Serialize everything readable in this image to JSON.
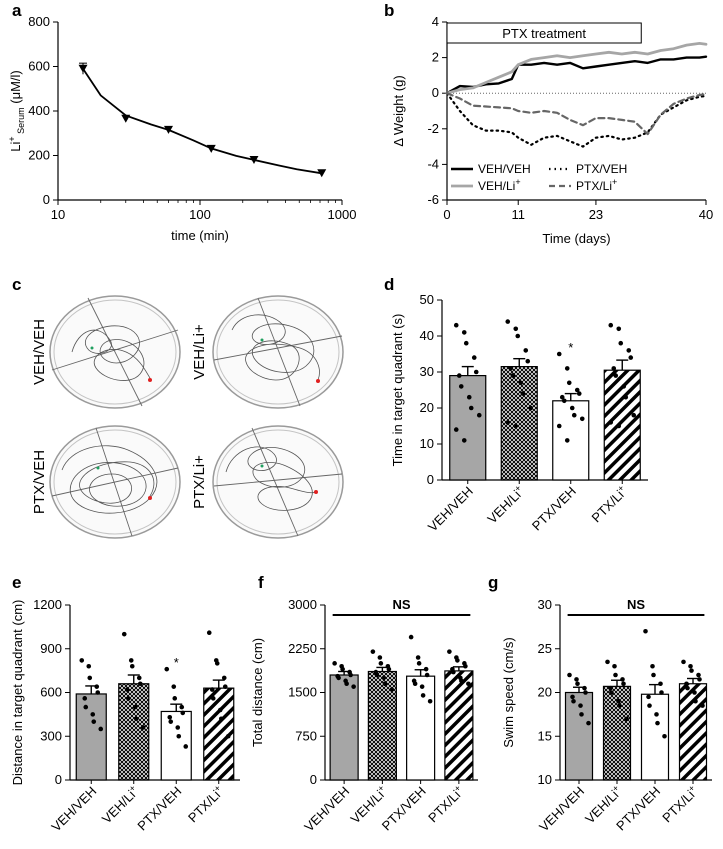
{
  "panel_labels": {
    "a": "a",
    "b": "b",
    "c": "c",
    "d": "d",
    "e": "e",
    "f": "f",
    "g": "g"
  },
  "maze_labels": [
    "VEH/VEH",
    "VEH/Li+",
    "PTX/VEH",
    "PTX/Li+"
  ],
  "chart_data": [
    {
      "id": "a",
      "type": "line",
      "scale": "log-x",
      "xlabel": "time (min)",
      "ylabel": "Li+ Serum (μM/l)",
      "ylabel_parts": {
        "main": "Li",
        "sup": "+",
        "sub": " Serum",
        "tail": " (μM/l)"
      },
      "xlim": [
        10,
        1000
      ],
      "ylim": [
        0,
        800
      ],
      "xticks": [
        10,
        100,
        1000
      ],
      "xtick_labels": [
        "10",
        "100",
        "1000"
      ],
      "yticks": [
        0,
        200,
        400,
        600,
        800
      ],
      "ytick_labels": [
        "0",
        "200",
        "400",
        "600",
        "800"
      ],
      "x": [
        15,
        30,
        60,
        120,
        240,
        720
      ],
      "y": [
        590,
        365,
        315,
        230,
        180,
        120
      ],
      "err": [
        25,
        0,
        0,
        0,
        0,
        0
      ],
      "fit_x": [
        15,
        20,
        30,
        45,
        60,
        90,
        120,
        180,
        240,
        360,
        480,
        720
      ],
      "fit_y": [
        590,
        470,
        380,
        340,
        315,
        268,
        232,
        198,
        180,
        155,
        138,
        120
      ]
    },
    {
      "id": "b",
      "type": "line",
      "xlabel": "Time (days)",
      "ylabel": "Δ Weight (g)",
      "ylabel_parts": {
        "main": "Δ Weight (g)"
      },
      "xlim": [
        0,
        40
      ],
      "ylim": [
        -6,
        4
      ],
      "xticks": [
        0,
        11,
        23,
        40
      ],
      "xtick_labels": [
        "0",
        "11",
        "23",
        "40"
      ],
      "yticks": [
        -6,
        -4,
        -2,
        0,
        2,
        4
      ],
      "ytick_labels": [
        "-6",
        "-4",
        "-2",
        "0",
        "2",
        "4"
      ],
      "annotation": "PTX treatment",
      "annotation_range": [
        0,
        30
      ],
      "series": [
        {
          "name": "VEH/VEH",
          "label": "VEH/VEH",
          "style": "solid-black",
          "x": [
            0,
            2,
            4,
            6,
            8,
            10,
            11,
            13,
            15,
            17,
            19,
            21,
            23,
            25,
            27,
            29,
            31,
            33,
            35,
            37,
            39,
            40
          ],
          "y": [
            0,
            0.4,
            0.35,
            0.5,
            0.55,
            0.8,
            1.6,
            1.6,
            1.7,
            1.6,
            1.7,
            1.4,
            1.5,
            1.6,
            1.7,
            1.8,
            1.7,
            1.9,
            1.9,
            2.0,
            2.0,
            2.05
          ]
        },
        {
          "name": "VEH/Li+",
          "label": "VEH/Li",
          "label_sup": "+",
          "style": "solid-gray",
          "x": [
            0,
            2,
            4,
            6,
            8,
            10,
            11,
            13,
            15,
            17,
            19,
            21,
            23,
            25,
            27,
            29,
            31,
            33,
            35,
            37,
            39,
            40
          ],
          "y": [
            0,
            0.2,
            0.3,
            0.6,
            0.9,
            1.2,
            1.6,
            1.9,
            2.0,
            2.1,
            2.0,
            2.1,
            2.2,
            2.3,
            2.2,
            2.3,
            2.2,
            2.4,
            2.5,
            2.7,
            2.8,
            2.75
          ]
        },
        {
          "name": "PTX/VEH",
          "label": "PTX/VEH",
          "style": "dotted-black",
          "x": [
            0,
            2,
            4,
            6,
            8,
            10,
            11,
            13,
            15,
            17,
            19,
            21,
            23,
            25,
            27,
            29,
            31,
            33,
            35,
            37,
            39,
            40
          ],
          "y": [
            0,
            -1.0,
            -1.8,
            -2.1,
            -2.1,
            -2.2,
            -2.5,
            -2.9,
            -2.5,
            -2.4,
            -2.7,
            -3.0,
            -2.5,
            -2.4,
            -2.6,
            -2.5,
            -2.2,
            -1.2,
            -0.8,
            -0.4,
            -0.2,
            -0.15
          ]
        },
        {
          "name": "PTX/Li+",
          "label": "PTX/Li",
          "label_sup": "+",
          "style": "dashed-gray",
          "x": [
            0,
            2,
            4,
            6,
            8,
            10,
            11,
            13,
            15,
            17,
            19,
            21,
            23,
            25,
            27,
            29,
            31,
            33,
            35,
            37,
            39,
            40
          ],
          "y": [
            0,
            -0.3,
            -0.7,
            -0.75,
            -0.8,
            -0.85,
            -1.0,
            -1.1,
            -1.0,
            -1.1,
            -1.5,
            -1.8,
            -1.4,
            -1.4,
            -1.5,
            -1.6,
            -2.3,
            -1.2,
            -0.6,
            -0.3,
            -0.1,
            -0.05
          ]
        }
      ]
    },
    {
      "id": "d",
      "type": "bar",
      "ylabel": "Time in target quadrant (s)",
      "ylim": [
        0,
        50
      ],
      "yticks": [
        0,
        10,
        20,
        30,
        40,
        50
      ],
      "ytick_labels": [
        "0",
        "10",
        "20",
        "30",
        "40",
        "50"
      ],
      "categories": [
        "VEH/VEH",
        "VEH/Li+",
        "PTX/VEH",
        "PTX/Li+"
      ],
      "category_labels": [
        {
          "main": "VEH/VEH"
        },
        {
          "main": "VEH/Li",
          "sup": "+"
        },
        {
          "main": "PTX/VEH"
        },
        {
          "main": "PTX/Li",
          "sup": "+"
        }
      ],
      "fills": [
        "gray",
        "crosshatch",
        "white",
        "stripes"
      ],
      "values": [
        29,
        31.5,
        22,
        30.5
      ],
      "sem": [
        2.5,
        2.2,
        2.0,
        2.8
      ],
      "stars": [
        "",
        "",
        "*",
        ""
      ],
      "points": [
        [
          43,
          41,
          38,
          34,
          30,
          29,
          26,
          23,
          20,
          18,
          14,
          11
        ],
        [
          44,
          42,
          40,
          36,
          33,
          31,
          29,
          27,
          24,
          20,
          16,
          15
        ],
        [
          35,
          31,
          27,
          25,
          24,
          23,
          22,
          20,
          18,
          17,
          15,
          11
        ],
        [
          43,
          42,
          38,
          36,
          34,
          31,
          29,
          26,
          23,
          18,
          16,
          15
        ]
      ]
    },
    {
      "id": "e",
      "type": "bar",
      "ylabel": "Distance in target quadrant (cm)",
      "ylim": [
        0,
        1200
      ],
      "yticks": [
        0,
        300,
        600,
        900,
        1200
      ],
      "ytick_labels": [
        "0",
        "300",
        "600",
        "900",
        "1200"
      ],
      "categories": [
        "VEH/VEH",
        "VEH/Li+",
        "PTX/VEH",
        "PTX/Li+"
      ],
      "category_labels": [
        {
          "main": "VEH/VEH"
        },
        {
          "main": "VEH/Li",
          "sup": "+"
        },
        {
          "main": "PTX/VEH"
        },
        {
          "main": "PTX/Li",
          "sup": "+"
        }
      ],
      "fills": [
        "gray",
        "crosshatch",
        "white",
        "stripes"
      ],
      "values": [
        590,
        660,
        470,
        630
      ],
      "sem": [
        55,
        60,
        50,
        55
      ],
      "stars": [
        "",
        "",
        "*",
        ""
      ],
      "points": [
        [
          820,
          780,
          700,
          640,
          600,
          560,
          500,
          450,
          400,
          350
        ],
        [
          1000,
          820,
          780,
          700,
          660,
          620,
          560,
          500,
          420,
          360
        ],
        [
          760,
          640,
          560,
          500,
          460,
          430,
          400,
          360,
          300,
          230
        ],
        [
          1010,
          820,
          800,
          700,
          640,
          620,
          560,
          480,
          420,
          300
        ]
      ]
    },
    {
      "id": "f",
      "type": "bar",
      "ylabel": "Total distance (cm)",
      "ylim": [
        0,
        3000
      ],
      "yticks": [
        0,
        750,
        1500,
        2250,
        3000
      ],
      "ytick_labels": [
        "0",
        "750",
        "1500",
        "2250",
        "3000"
      ],
      "categories": [
        "VEH/VEH",
        "VEH/Li+",
        "PTX/VEH",
        "PTX/Li+"
      ],
      "category_labels": [
        {
          "main": "VEH/VEH"
        },
        {
          "main": "VEH/Li",
          "sup": "+"
        },
        {
          "main": "PTX/VEH"
        },
        {
          "main": "PTX/Li",
          "sup": "+"
        }
      ],
      "fills": [
        "gray",
        "crosshatch",
        "white",
        "stripes"
      ],
      "values": [
        1800,
        1860,
        1780,
        1870
      ],
      "sem": [
        60,
        70,
        110,
        70
      ],
      "significance": "NS",
      "points": [
        [
          2000,
          1950,
          1900,
          1850,
          1800,
          1780,
          1750,
          1700,
          1650,
          1600
        ],
        [
          2200,
          2100,
          2000,
          1950,
          1900,
          1850,
          1800,
          1750,
          1650,
          1550
        ],
        [
          2450,
          2100,
          2000,
          1900,
          1800,
          1700,
          1650,
          1600,
          1450,
          1350
        ],
        [
          2200,
          2100,
          2050,
          2000,
          1950,
          1900,
          1850,
          1750,
          1700,
          1650
        ]
      ]
    },
    {
      "id": "g",
      "type": "bar",
      "ylabel": "Swim speed (cm/s)",
      "ylim": [
        10,
        30
      ],
      "yticks": [
        10,
        15,
        20,
        25,
        30
      ],
      "ytick_labels": [
        "10",
        "15",
        "20",
        "25",
        "30"
      ],
      "categories": [
        "VEH/VEH",
        "VEH/Li+",
        "PTX/VEH",
        "PTX/Li+"
      ],
      "category_labels": [
        {
          "main": "VEH/VEH"
        },
        {
          "main": "VEH/Li",
          "sup": "+"
        },
        {
          "main": "PTX/VEH"
        },
        {
          "main": "PTX/Li",
          "sup": "+"
        }
      ],
      "fills": [
        "gray",
        "crosshatch",
        "white",
        "stripes"
      ],
      "values": [
        20,
        20.7,
        19.8,
        21
      ],
      "sem": [
        0.6,
        0.7,
        1.1,
        0.6
      ],
      "significance": "NS",
      "points": [
        [
          22,
          21.5,
          21,
          20.5,
          20,
          19.5,
          19,
          18.5,
          17.5,
          16.5
        ],
        [
          23.5,
          23,
          22,
          21.5,
          21,
          20.5,
          20,
          19,
          18.5,
          17
        ],
        [
          27,
          23,
          22,
          21,
          20,
          19.5,
          18.5,
          17.5,
          16.5,
          15
        ],
        [
          23.5,
          23,
          22.5,
          22,
          21.5,
          21,
          20.5,
          20,
          19,
          18.5
        ]
      ]
    }
  ]
}
